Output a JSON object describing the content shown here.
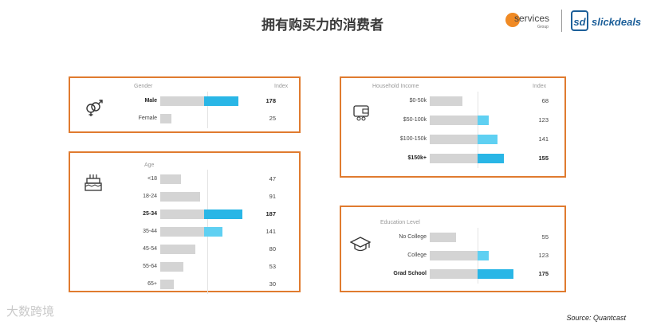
{
  "page": {
    "title": "拥有购买力的消费者",
    "source": "Source: Quantcast",
    "watermark": "大数跨境"
  },
  "logos": {
    "eservices_text": "services",
    "eservices_group": "Group",
    "slickdeals_badge": "sd",
    "slickdeals_text": "slickdeals"
  },
  "colors": {
    "accent_bar": "#29b6e6",
    "light_bar": "#5fd0f2",
    "gray_bar": "#d4d4d4",
    "panel_border": "#e07b2f"
  },
  "chart_data": [
    {
      "type": "bar",
      "title": "",
      "header": "Gender",
      "value_header": "Index",
      "categories": [
        "Male",
        "Female"
      ],
      "values": [
        178,
        25
      ],
      "baseline": 100,
      "highlight": [
        "Male"
      ]
    },
    {
      "type": "bar",
      "title": "",
      "header": "Age",
      "value_header": "",
      "categories": [
        "<18",
        "18-24",
        "25-34",
        "35-44",
        "45-54",
        "55-64",
        "65+"
      ],
      "values": [
        47,
        91,
        187,
        141,
        80,
        53,
        30
      ],
      "baseline": 100,
      "highlight": [
        "25-34"
      ]
    },
    {
      "type": "bar",
      "title": "",
      "header": "Household Income",
      "value_header": "Index",
      "categories": [
        "$0-50k",
        "$50-100k",
        "$100-150k",
        "$150k+"
      ],
      "values": [
        68,
        123,
        141,
        155
      ],
      "baseline": 100,
      "highlight": [
        "$150k+"
      ]
    },
    {
      "type": "bar",
      "title": "",
      "header": "Education Level",
      "value_header": "",
      "categories": [
        "No College",
        "College",
        "Grad School"
      ],
      "values": [
        55,
        123,
        175
      ],
      "baseline": 100,
      "highlight": [
        "Grad School"
      ]
    }
  ]
}
